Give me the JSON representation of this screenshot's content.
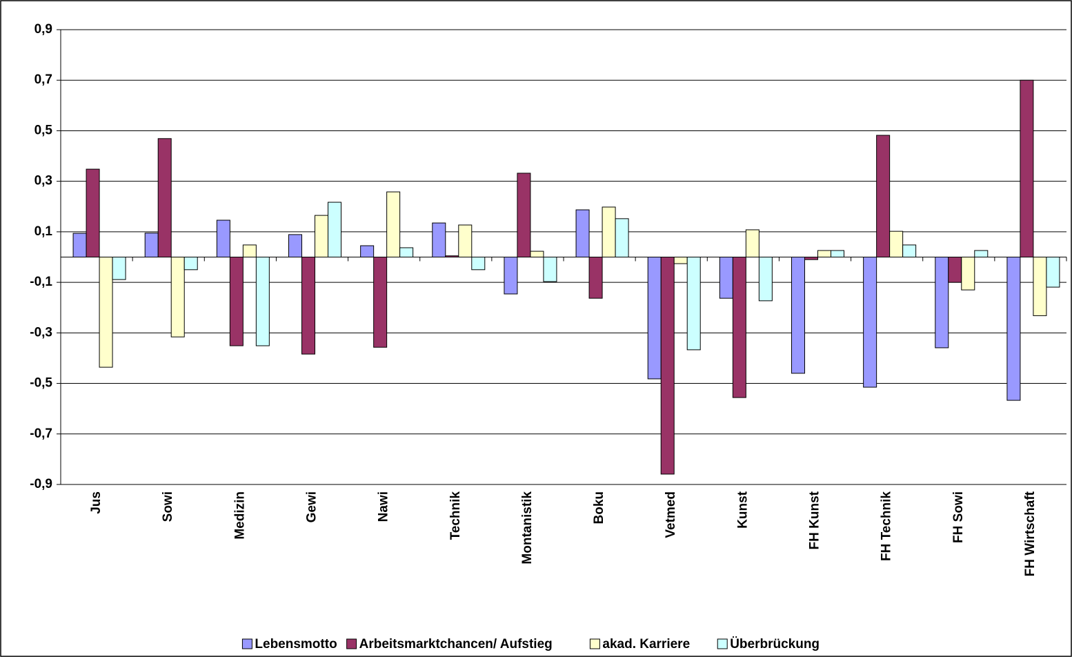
{
  "chart_data": {
    "type": "bar",
    "categories": [
      "Jus",
      "Sowi",
      "Medizin",
      "Gewi",
      "Nawi",
      "Technik",
      "Montanistik",
      "Boku",
      "Vetmed",
      "Kunst",
      "FH Kunst",
      "FH Technik",
      "FH Sowi",
      "FH Wirtschaft"
    ],
    "series": [
      {
        "name": "Lebensmotto",
        "color": "#9999ff",
        "values": [
          0.094,
          0.095,
          0.146,
          0.089,
          0.045,
          0.135,
          -0.146,
          0.187,
          -0.482,
          -0.163,
          -0.46,
          -0.515,
          -0.359,
          -0.567
        ]
      },
      {
        "name": "Arbeitsmarktchancen/ Aufstieg",
        "color": "#993366",
        "values": [
          0.348,
          0.469,
          -0.351,
          -0.384,
          -0.357,
          0.005,
          0.332,
          -0.163,
          -0.859,
          -0.556,
          -0.01,
          0.482,
          -0.1,
          0.7
        ]
      },
      {
        "name": "akad. Karriere",
        "color": "#ffffcc",
        "values": [
          -0.436,
          -0.316,
          0.048,
          0.165,
          0.258,
          0.127,
          0.023,
          0.198,
          -0.026,
          0.108,
          0.026,
          0.102,
          -0.13,
          -0.232
        ]
      },
      {
        "name": "Überbrückung",
        "color": "#ccffff",
        "values": [
          -0.089,
          -0.05,
          -0.351,
          0.217,
          0.037,
          -0.05,
          -0.097,
          0.152,
          -0.367,
          -0.173,
          0.026,
          0.048,
          0.026,
          -0.119
        ]
      }
    ],
    "ylim": [
      -0.9,
      0.9
    ],
    "yticks": [
      {
        "value": -0.9,
        "label": "-0,9"
      },
      {
        "value": -0.7,
        "label": "-0,7"
      },
      {
        "value": -0.5,
        "label": "-0,5"
      },
      {
        "value": -0.3,
        "label": "-0,3"
      },
      {
        "value": -0.1,
        "label": "-0,1"
      },
      {
        "value": 0.1,
        "label": "0,1"
      },
      {
        "value": 0.3,
        "label": "0,3"
      },
      {
        "value": 0.5,
        "label": "0,5"
      },
      {
        "value": 0.7,
        "label": "0,7"
      },
      {
        "value": 0.9,
        "label": "0,9"
      }
    ],
    "grid": true,
    "legend": "bottom"
  }
}
